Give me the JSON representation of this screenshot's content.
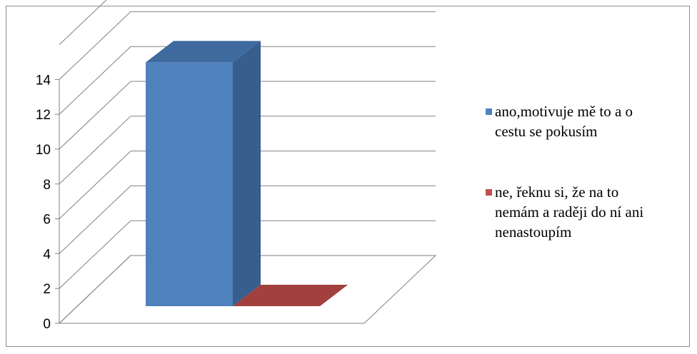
{
  "chart_data": {
    "type": "bar",
    "style": "3d-clustered-column",
    "categories": [
      ""
    ],
    "series": [
      {
        "name": "ano,motivuje mě to a o cestu se pokusím",
        "values": [
          14
        ],
        "color": "#4F81BD"
      },
      {
        "name": "ne, řeknu si, že na to nemám a raději do ní ani nenastoupím",
        "values": [
          0
        ],
        "color": "#C0504D"
      }
    ],
    "ylim": [
      0,
      14
    ],
    "y_ticks": [
      "0",
      "2",
      "4",
      "6",
      "8",
      "10",
      "12",
      "14"
    ],
    "grid": true,
    "legend_position": "right",
    "legend_lines": [
      [
        "ano,motivuje mě to a o",
        "cestu se pokusím"
      ],
      [
        "ne, řeknu si, že na to",
        "nemám a raději do ní ani",
        "nenastoupím"
      ]
    ]
  }
}
